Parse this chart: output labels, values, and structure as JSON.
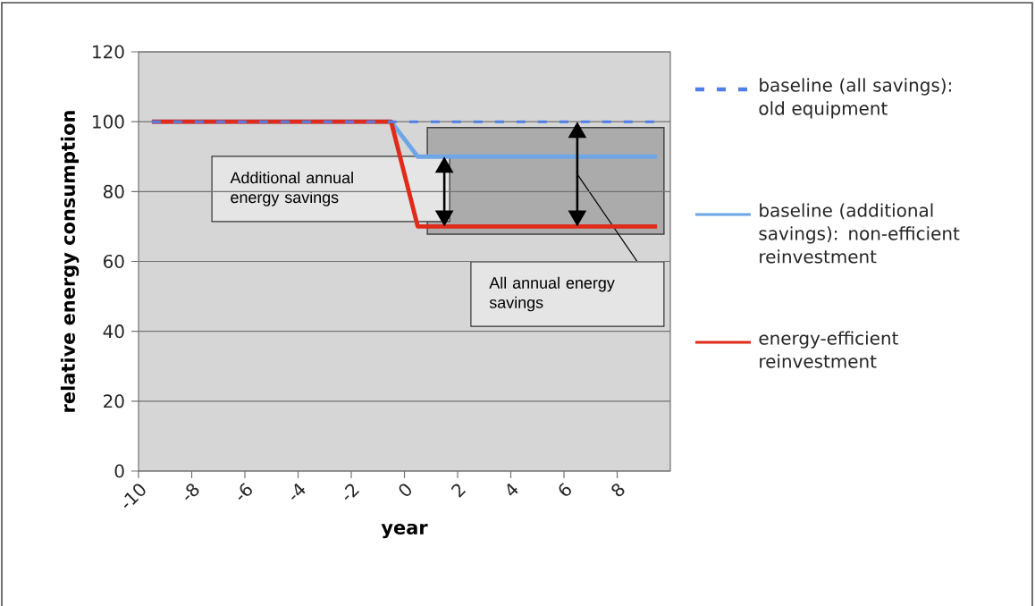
{
  "chart_data": {
    "type": "line",
    "xlabel": "year",
    "ylabel": "relative energy consumption",
    "x": [
      -9.5,
      -0.5,
      0.5,
      9.5
    ],
    "xlim": [
      -10,
      10
    ],
    "xticks": [
      -10,
      -8,
      -6,
      -4,
      -2,
      0,
      2,
      4,
      6,
      8
    ],
    "ylim": [
      0,
      120
    ],
    "yticks": [
      0,
      20,
      40,
      60,
      80,
      100,
      120
    ],
    "grid": "y",
    "legend": "right",
    "marker": "none",
    "series": [
      {
        "name": "baseline (all savings): old equipment",
        "color": "#4f7fe8",
        "line_style": "dashed",
        "values": [
          100,
          100,
          100,
          100
        ]
      },
      {
        "name": "baseline (additional savings): non-efficient reinvestment",
        "color": "#6ea6e6",
        "line_style": "solid",
        "values": [
          100,
          100,
          90,
          90
        ]
      },
      {
        "name": "energy-efficient reinvestment",
        "color": "#e02a1a",
        "line_style": "solid",
        "values": [
          100,
          100,
          70,
          70
        ]
      }
    ],
    "annotations": [
      "Additional annual energy savings",
      "All annual energy savings"
    ]
  }
}
